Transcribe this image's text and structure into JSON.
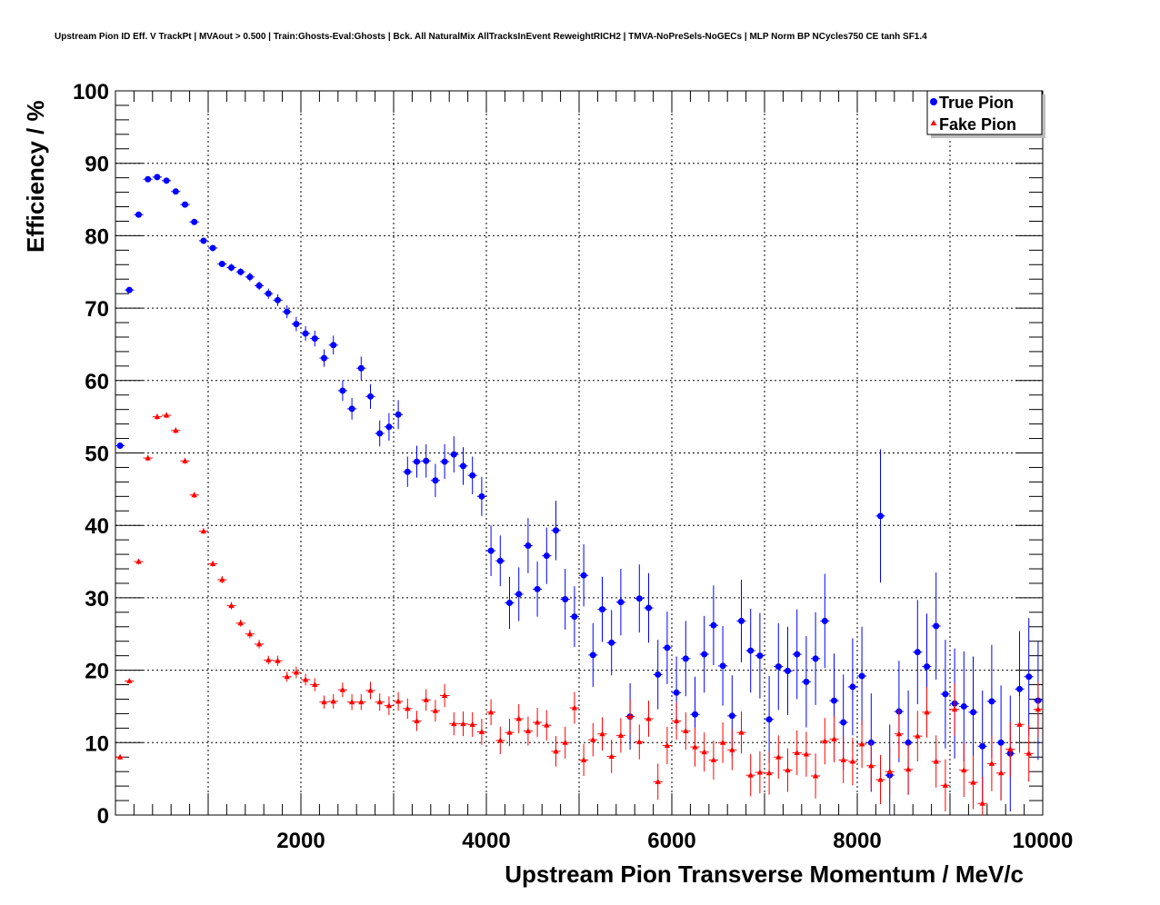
{
  "chart_data": {
    "type": "scatter",
    "title": "Upstream Pion ID Eff. V TrackPt | MVAout > 0.500 | Train:Ghosts-Eval:Ghosts | Bck. All NaturalMix AllTracksInEvent ReweightRICH2 | TMVA-NoPreSels-NoGECs | MLP Norm BP NCycles750 CE tanh SF1.4",
    "xlabel": "Upstream Pion Transverse Momentum / MeV/c",
    "ylabel": "Efficiency / %",
    "xlim": [
      0,
      10000
    ],
    "ylim": [
      0,
      100
    ],
    "x_ticks": [
      "2000",
      "4000",
      "6000",
      "8000",
      "10000"
    ],
    "y_ticks": [
      "0",
      "10",
      "20",
      "30",
      "40",
      "50",
      "60",
      "70",
      "80",
      "90",
      "100"
    ],
    "grid": true,
    "legend_position": "top-right",
    "bin_width": 100,
    "series": [
      {
        "name": "True Pion",
        "color": "#0000ff",
        "marker": "circle",
        "x": [
          50,
          150,
          250,
          350,
          450,
          550,
          650,
          750,
          850,
          950,
          1050,
          1150,
          1250,
          1350,
          1450,
          1550,
          1650,
          1750,
          1850,
          1950,
          2050,
          2150,
          2250,
          2350,
          2450,
          2550,
          2650,
          2750,
          2850,
          2950,
          3050,
          3150,
          3250,
          3350,
          3450,
          3550,
          3650,
          3750,
          3850,
          3950,
          4050,
          4150,
          4250,
          4350,
          4450,
          4550,
          4650,
          4750,
          4850,
          4950,
          5050,
          5150,
          5250,
          5350,
          5450,
          5550,
          5650,
          5750,
          5850,
          5950,
          6050,
          6150,
          6250,
          6350,
          6450,
          6550,
          6650,
          6750,
          6850,
          6950,
          7050,
          7150,
          7250,
          7350,
          7450,
          7550,
          7650,
          7750,
          7850,
          7950,
          8050,
          8150,
          8250,
          8350,
          8450,
          8550,
          8650,
          8750,
          8850,
          8950,
          9050,
          9150,
          9250,
          9350,
          9450,
          9550,
          9650,
          9750,
          9850,
          9950
        ],
        "y": [
          51.0,
          72.5,
          82.9,
          87.8,
          88.1,
          87.6,
          86.1,
          84.3,
          81.9,
          79.3,
          78.3,
          76.1,
          75.6,
          75.0,
          74.3,
          73.1,
          72.0,
          71.1,
          69.5,
          67.8,
          66.5,
          65.8,
          63.1,
          64.9,
          58.6,
          56.1,
          61.7,
          57.8,
          52.7,
          53.6,
          55.3,
          47.4,
          48.8,
          48.9,
          46.2,
          48.8,
          49.8,
          48.2,
          46.9,
          44.0,
          36.5,
          35.1,
          29.3,
          30.5,
          37.2,
          31.2,
          35.8,
          39.3,
          29.8,
          27.4,
          33.1,
          22.1,
          28.4,
          23.8,
          29.4,
          13.6,
          29.9,
          28.6,
          19.4,
          23.1,
          16.9,
          21.6,
          13.9,
          22.2,
          26.2,
          20.6,
          13.7,
          26.8,
          22.7,
          22.0,
          13.2,
          20.5,
          19.9,
          22.2,
          18.4,
          21.6,
          26.8,
          15.8,
          12.8,
          17.7,
          19.2,
          10.0,
          41.3,
          5.5,
          14.3,
          10.0,
          22.5,
          20.5,
          26.1,
          16.7,
          15.4,
          15.0,
          14.2,
          9.5,
          15.7,
          10.0,
          8.5,
          17.4,
          19.1,
          15.8
        ],
        "err": [
          0.4,
          0.4,
          0.4,
          0.3,
          0.3,
          0.3,
          0.3,
          0.3,
          0.3,
          0.4,
          0.4,
          0.4,
          0.5,
          0.5,
          0.6,
          0.6,
          0.7,
          0.8,
          0.9,
          1.0,
          1.0,
          1.1,
          1.2,
          1.3,
          1.4,
          1.5,
          1.6,
          1.7,
          1.8,
          1.9,
          2.0,
          2.1,
          2.2,
          2.3,
          2.3,
          2.4,
          2.5,
          2.6,
          2.6,
          2.7,
          3.5,
          3.5,
          3.6,
          3.7,
          3.8,
          3.8,
          3.9,
          4.1,
          4.2,
          4.2,
          4.3,
          4.4,
          4.5,
          4.5,
          4.6,
          4.6,
          4.7,
          4.8,
          4.8,
          5.0,
          5.0,
          5.2,
          5.2,
          5.3,
          5.5,
          5.5,
          5.6,
          5.7,
          5.8,
          5.9,
          6.0,
          6.0,
          6.1,
          6.2,
          6.3,
          6.4,
          6.5,
          6.5,
          6.6,
          6.7,
          6.8,
          6.8,
          9.2,
          7.0,
          7.0,
          7.2,
          7.2,
          7.3,
          7.4,
          7.5,
          7.6,
          7.6,
          7.7,
          7.7,
          7.8,
          7.9,
          8.0,
          8.0,
          8.1,
          8.2
        ]
      },
      {
        "name": "Fake Pion",
        "color": "#ff0000",
        "marker": "triangle",
        "x": [
          50,
          150,
          250,
          350,
          450,
          550,
          650,
          750,
          850,
          950,
          1050,
          1150,
          1250,
          1350,
          1450,
          1550,
          1650,
          1750,
          1850,
          1950,
          2050,
          2150,
          2250,
          2350,
          2450,
          2550,
          2650,
          2750,
          2850,
          2950,
          3050,
          3150,
          3250,
          3350,
          3450,
          3550,
          3650,
          3750,
          3850,
          3950,
          4050,
          4150,
          4250,
          4350,
          4450,
          4550,
          4650,
          4750,
          4850,
          4950,
          5050,
          5150,
          5250,
          5350,
          5450,
          5550,
          5650,
          5750,
          5850,
          5950,
          6050,
          6150,
          6250,
          6350,
          6450,
          6550,
          6650,
          6750,
          6850,
          6950,
          7050,
          7150,
          7250,
          7350,
          7450,
          7550,
          7650,
          7750,
          7850,
          7950,
          8050,
          8150,
          8250,
          8350,
          8450,
          8550,
          8650,
          8750,
          8850,
          8950,
          9050,
          9150,
          9250,
          9350,
          9450,
          9550,
          9650,
          9750,
          9850,
          9950
        ],
        "y": [
          8.0,
          18.5,
          35.0,
          49.3,
          55.0,
          55.2,
          53.1,
          48.9,
          44.2,
          39.2,
          34.7,
          32.5,
          28.9,
          26.5,
          25.0,
          23.6,
          21.4,
          21.3,
          19.1,
          19.7,
          18.7,
          18.0,
          15.6,
          15.7,
          17.3,
          15.6,
          15.6,
          17.2,
          15.6,
          15.1,
          15.7,
          14.7,
          13.0,
          15.9,
          14.4,
          16.5,
          12.6,
          12.6,
          12.5,
          11.5,
          14.2,
          10.3,
          11.4,
          13.3,
          11.6,
          12.8,
          12.4,
          8.8,
          10.0,
          14.8,
          7.6,
          10.4,
          11.2,
          8.1,
          11.0,
          13.6,
          10.1,
          13.3,
          4.6,
          9.6,
          13.0,
          11.6,
          9.4,
          8.7,
          7.6,
          10.0,
          9.0,
          11.4,
          5.5,
          5.9,
          5.8,
          8.0,
          6.2,
          8.6,
          8.4,
          5.4,
          10.2,
          10.5,
          7.6,
          7.4,
          9.8,
          6.8,
          4.9,
          6.0,
          11.2,
          6.3,
          10.9,
          14.2,
          7.4,
          4.1,
          14.6,
          6.2,
          4.5,
          1.6,
          7.1,
          5.8,
          9.1,
          12.5,
          8.5,
          14.6
        ],
        "err": [
          0.3,
          0.3,
          0.4,
          0.4,
          0.4,
          0.4,
          0.4,
          0.4,
          0.4,
          0.4,
          0.4,
          0.5,
          0.5,
          0.5,
          0.6,
          0.6,
          0.6,
          0.7,
          0.7,
          0.8,
          0.8,
          0.9,
          0.9,
          1.0,
          1.0,
          1.1,
          1.1,
          1.2,
          1.2,
          1.3,
          1.3,
          1.4,
          1.4,
          1.5,
          1.5,
          1.6,
          1.6,
          1.7,
          1.7,
          1.8,
          1.8,
          1.9,
          1.9,
          2.0,
          2.0,
          2.0,
          2.1,
          2.1,
          2.2,
          2.2,
          2.2,
          2.3,
          2.3,
          2.3,
          2.4,
          2.4,
          2.4,
          2.5,
          2.5,
          2.6,
          2.6,
          2.6,
          2.7,
          2.7,
          2.7,
          2.8,
          2.8,
          2.9,
          2.9,
          2.9,
          3.0,
          3.0,
          3.0,
          3.1,
          3.1,
          3.1,
          3.2,
          3.2,
          3.2,
          3.3,
          3.3,
          3.3,
          3.4,
          3.4,
          3.4,
          3.5,
          3.5,
          3.5,
          3.6,
          3.6,
          3.6,
          3.7,
          3.7,
          3.7,
          3.8,
          3.8,
          3.8,
          3.9,
          3.9,
          3.9
        ]
      }
    ]
  }
}
